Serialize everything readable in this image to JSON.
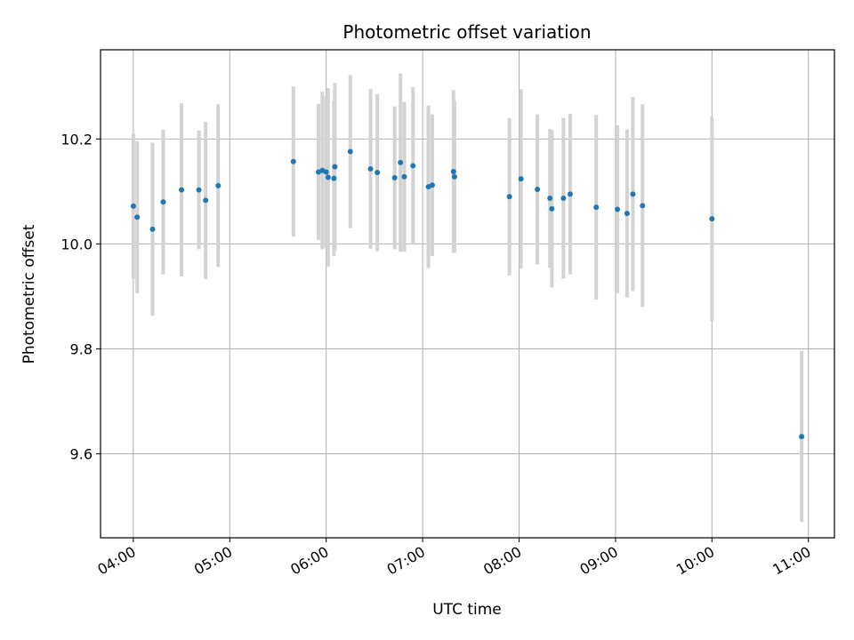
{
  "chart_data": {
    "type": "scatter",
    "title": "Photometric offset variation",
    "xlabel": "UTC time",
    "ylabel": "Photometric offset",
    "x_unit": "UTC hour of day",
    "xlim": [
      3.66,
      11.27
    ],
    "ylim": [
      9.44,
      10.37
    ],
    "x_ticks": [
      4,
      5,
      6,
      7,
      8,
      9,
      10,
      11
    ],
    "x_tick_labels": [
      "04:00",
      "05:00",
      "06:00",
      "07:00",
      "08:00",
      "09:00",
      "10:00",
      "11:00"
    ],
    "y_ticks": [
      9.6,
      9.8,
      10.0,
      10.2
    ],
    "y_tick_labels": [
      "9.6",
      "9.8",
      "10.0",
      "10.2"
    ],
    "grid": true,
    "marker_color": "#1f77b4",
    "errorbar_color": "#d3d3d3",
    "points": [
      {
        "x": 4.0,
        "y": 10.072,
        "err": 0.138
      },
      {
        "x": 4.04,
        "y": 10.051,
        "err": 0.145
      },
      {
        "x": 4.2,
        "y": 10.028,
        "err": 0.165
      },
      {
        "x": 4.31,
        "y": 10.08,
        "err": 0.138
      },
      {
        "x": 4.5,
        "y": 10.103,
        "err": 0.165
      },
      {
        "x": 4.68,
        "y": 10.103,
        "err": 0.113
      },
      {
        "x": 4.75,
        "y": 10.083,
        "err": 0.15
      },
      {
        "x": 4.88,
        "y": 10.111,
        "err": 0.155
      },
      {
        "x": 5.66,
        "y": 10.157,
        "err": 0.143
      },
      {
        "x": 5.92,
        "y": 10.137,
        "err": 0.13
      },
      {
        "x": 5.96,
        "y": 10.14,
        "err": 0.15
      },
      {
        "x": 6.0,
        "y": 10.137,
        "err": 0.145
      },
      {
        "x": 6.02,
        "y": 10.127,
        "err": 0.17
      },
      {
        "x": 6.08,
        "y": 10.125,
        "err": 0.148
      },
      {
        "x": 6.09,
        "y": 10.147,
        "err": 0.16
      },
      {
        "x": 6.25,
        "y": 10.176,
        "err": 0.146
      },
      {
        "x": 6.46,
        "y": 10.143,
        "err": 0.152
      },
      {
        "x": 6.53,
        "y": 10.136,
        "err": 0.15
      },
      {
        "x": 6.71,
        "y": 10.126,
        "err": 0.136
      },
      {
        "x": 6.77,
        "y": 10.155,
        "err": 0.17
      },
      {
        "x": 6.81,
        "y": 10.128,
        "err": 0.143
      },
      {
        "x": 6.9,
        "y": 10.149,
        "err": 0.15
      },
      {
        "x": 7.06,
        "y": 10.109,
        "err": 0.155
      },
      {
        "x": 7.1,
        "y": 10.112,
        "err": 0.135
      },
      {
        "x": 7.32,
        "y": 10.138,
        "err": 0.155
      },
      {
        "x": 7.33,
        "y": 10.128,
        "err": 0.145
      },
      {
        "x": 7.9,
        "y": 10.09,
        "err": 0.15
      },
      {
        "x": 8.02,
        "y": 10.124,
        "err": 0.171
      },
      {
        "x": 8.19,
        "y": 10.104,
        "err": 0.143
      },
      {
        "x": 8.32,
        "y": 10.087,
        "err": 0.132
      },
      {
        "x": 8.34,
        "y": 10.067,
        "err": 0.15
      },
      {
        "x": 8.46,
        "y": 10.087,
        "err": 0.153
      },
      {
        "x": 8.53,
        "y": 10.095,
        "err": 0.153
      },
      {
        "x": 8.8,
        "y": 10.07,
        "err": 0.176
      },
      {
        "x": 9.02,
        "y": 10.066,
        "err": 0.16
      },
      {
        "x": 9.12,
        "y": 10.058,
        "err": 0.16
      },
      {
        "x": 9.18,
        "y": 10.095,
        "err": 0.185
      },
      {
        "x": 9.28,
        "y": 10.073,
        "err": 0.193
      },
      {
        "x": 10.0,
        "y": 10.048,
        "err": 0.195
      },
      {
        "x": 10.93,
        "y": 9.633,
        "err": 0.163
      }
    ]
  }
}
